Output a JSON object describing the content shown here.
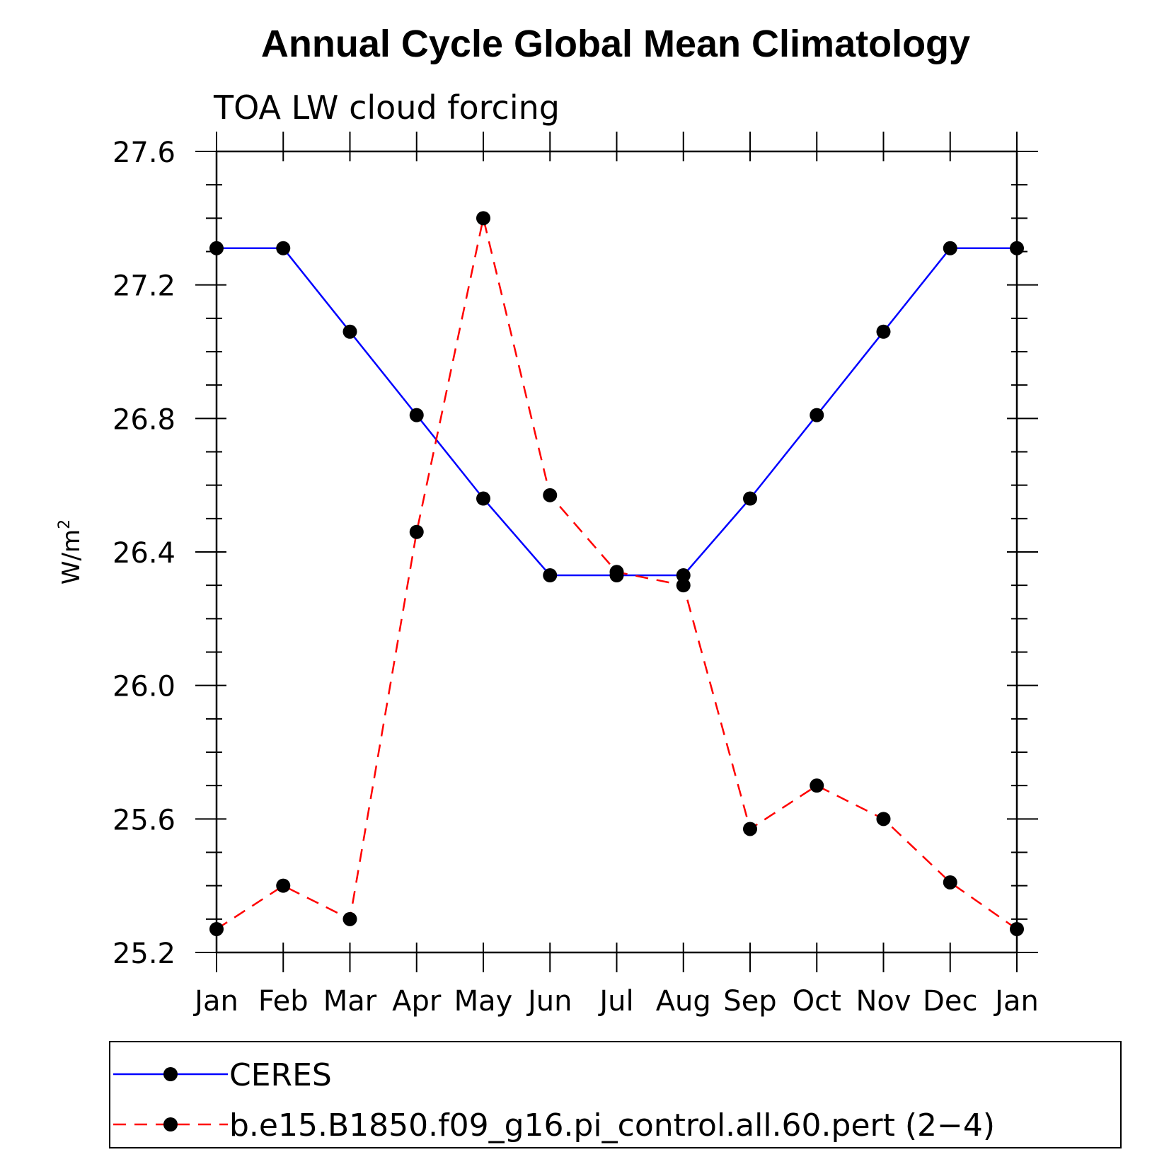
{
  "chart_data": {
    "type": "line",
    "title": "Annual Cycle Global Mean Climatology",
    "subtitle": "TOA LW cloud forcing",
    "xlabel": "",
    "ylabel_base": "W/m",
    "ylabel_sup": "2",
    "categories": [
      "Jan",
      "Feb",
      "Mar",
      "Apr",
      "May",
      "Jun",
      "Jul",
      "Aug",
      "Sep",
      "Oct",
      "Nov",
      "Dec",
      "Jan"
    ],
    "ylim": [
      25.2,
      27.6
    ],
    "yticks": [
      "25.2",
      "25.6",
      "26.0",
      "26.4",
      "26.8",
      "27.2",
      "27.6"
    ],
    "series": [
      {
        "name": "CERES",
        "color": "#0000ff",
        "dash": "solid",
        "values": [
          27.31,
          27.31,
          27.06,
          26.81,
          26.56,
          26.33,
          26.33,
          26.33,
          26.56,
          26.81,
          27.06,
          27.31,
          27.31
        ]
      },
      {
        "name": "b.e15.B1850.f09_g16.pi_control.all.60.pert (2−4)",
        "color": "#ff0000",
        "dash": "dashed",
        "values": [
          25.27,
          25.4,
          25.3,
          26.46,
          27.4,
          26.57,
          26.34,
          26.3,
          25.57,
          25.7,
          25.6,
          25.41,
          25.27
        ]
      }
    ],
    "legend_position": "bottom"
  }
}
